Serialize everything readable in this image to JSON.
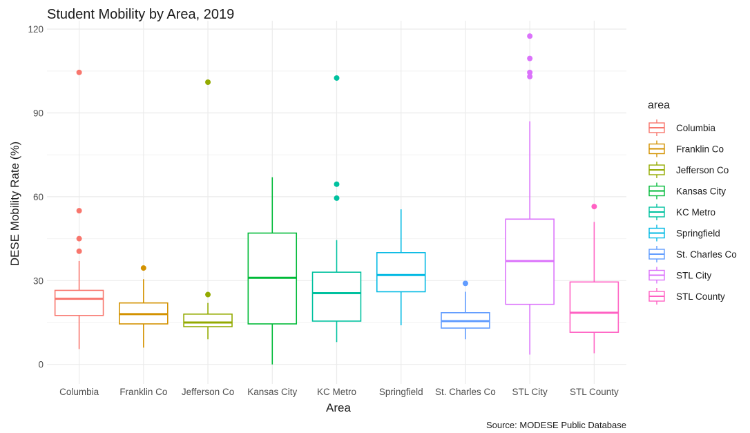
{
  "chart_data": {
    "type": "boxplot",
    "title": "Student Mobility by Area, 2019",
    "xlabel": "Area",
    "ylabel": "DESE Mobility Rate (%)",
    "caption": "Source: MODESE Public Database",
    "ylim": [
      -7,
      123
    ],
    "yticks": [
      0,
      30,
      60,
      90,
      120
    ],
    "grid": true,
    "legend": {
      "title": "area",
      "position": "right"
    },
    "categories": [
      "Columbia",
      "Franklin Co",
      "Jefferson Co",
      "Kansas City",
      "KC Metro",
      "Springfield",
      "St. Charles Co",
      "STL City",
      "STL County"
    ],
    "series": [
      {
        "name": "Columbia",
        "color": "#F8766D",
        "whisker_low": 5.5,
        "q1": 17.5,
        "median": 23.5,
        "q3": 26.5,
        "whisker_high": 37,
        "outliers": [
          104.5,
          55,
          45,
          40.5
        ]
      },
      {
        "name": "Franklin Co",
        "color": "#D39200",
        "whisker_low": 6,
        "q1": 14.5,
        "median": 18,
        "q3": 22,
        "whisker_high": 30.5,
        "outliers": [
          34.5
        ]
      },
      {
        "name": "Jefferson Co",
        "color": "#93AA00",
        "whisker_low": 9,
        "q1": 13.5,
        "median": 15,
        "q3": 18,
        "whisker_high": 22,
        "outliers": [
          101,
          25
        ]
      },
      {
        "name": "Kansas City",
        "color": "#00BA38",
        "whisker_low": 0,
        "q1": 14.5,
        "median": 31,
        "q3": 47,
        "whisker_high": 67,
        "outliers": []
      },
      {
        "name": "KC Metro",
        "color": "#00C19F",
        "whisker_low": 8,
        "q1": 15.5,
        "median": 25.5,
        "q3": 33,
        "whisker_high": 44.5,
        "outliers": [
          102.5,
          64.5,
          59.5
        ]
      },
      {
        "name": "Springfield",
        "color": "#00B9E3",
        "whisker_low": 14,
        "q1": 26,
        "median": 32,
        "q3": 40,
        "whisker_high": 55.5,
        "outliers": []
      },
      {
        "name": "St. Charles Co",
        "color": "#619CFF",
        "whisker_low": 9,
        "q1": 13,
        "median": 15.5,
        "q3": 18.5,
        "whisker_high": 26,
        "outliers": [
          29
        ]
      },
      {
        "name": "STL City",
        "color": "#DB72FB",
        "whisker_low": 3.5,
        "q1": 21.5,
        "median": 37,
        "q3": 52,
        "whisker_high": 87,
        "outliers": [
          117.5,
          109.5,
          104.5,
          103
        ]
      },
      {
        "name": "STL County",
        "color": "#FF61C3",
        "whisker_low": 4,
        "q1": 11.5,
        "median": 18.5,
        "q3": 29.5,
        "whisker_high": 51,
        "outliers": [
          56.5
        ]
      }
    ]
  }
}
